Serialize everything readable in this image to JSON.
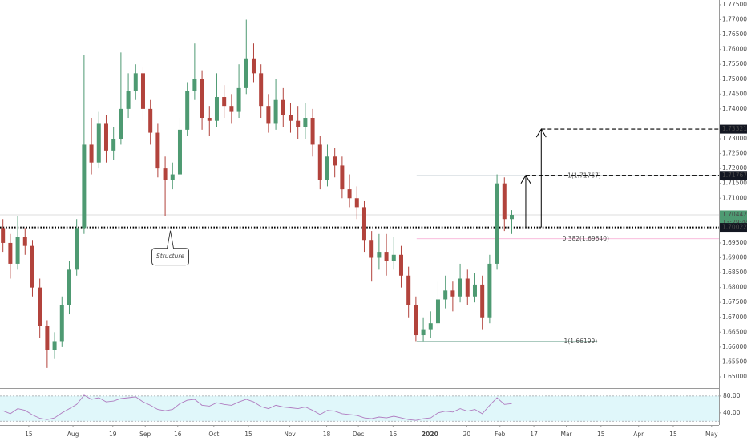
{
  "chart_data": {
    "type": "candlestick",
    "up_color": "#4e9a72",
    "down_color": "#b2433c",
    "xlim": [
      -0.4,
      97.1
    ],
    "ylim": [
      1.6465,
      1.7766
    ],
    "xticks": [
      {
        "value": 3.5,
        "label": "15"
      },
      {
        "value": 9.5,
        "label": "Aug"
      },
      {
        "value": 14.9,
        "label": "19"
      },
      {
        "value": 19.3,
        "label": "Sep"
      },
      {
        "value": 23.7,
        "label": "16"
      },
      {
        "value": 28.6,
        "label": "Oct"
      },
      {
        "value": 33.3,
        "label": "15"
      },
      {
        "value": 38.9,
        "label": "Nov"
      },
      {
        "value": 43.9,
        "label": "18"
      },
      {
        "value": 48.2,
        "label": "Dec"
      },
      {
        "value": 52.9,
        "label": "16"
      },
      {
        "value": 57.9,
        "label": "2020"
      },
      {
        "value": 62.9,
        "label": "20"
      },
      {
        "value": 67.4,
        "label": "Feb"
      },
      {
        "value": 72,
        "label": "17"
      },
      {
        "value": 76.4,
        "label": "Mar"
      },
      {
        "value": 81.1,
        "label": "15"
      },
      {
        "value": 86.2,
        "label": "Apr"
      },
      {
        "value": 90.9,
        "label": "15"
      },
      {
        "value": 96.1,
        "label": "May"
      }
    ],
    "yticks": [
      {
        "value": 1.65,
        "label": "1.65000"
      },
      {
        "value": 1.655,
        "label": "1.65500"
      },
      {
        "value": 1.66,
        "label": "1.66000"
      },
      {
        "value": 1.665,
        "label": "1.66500"
      },
      {
        "value": 1.67,
        "label": "1.67000"
      },
      {
        "value": 1.675,
        "label": "1.67500"
      },
      {
        "value": 1.68,
        "label": "1.68000"
      },
      {
        "value": 1.685,
        "label": "1.68500"
      },
      {
        "value": 1.69,
        "label": "1.69000"
      },
      {
        "value": 1.695,
        "label": "1.69500"
      },
      {
        "value": 1.71,
        "label": "1.71000"
      },
      {
        "value": 1.715,
        "label": "1.71500"
      },
      {
        "value": 1.72,
        "label": "1.72000"
      },
      {
        "value": 1.725,
        "label": "1.72500"
      },
      {
        "value": 1.73,
        "label": "1.73000"
      },
      {
        "value": 1.74,
        "label": "1.74000"
      },
      {
        "value": 1.745,
        "label": "1.74500"
      },
      {
        "value": 1.75,
        "label": "1.75000"
      },
      {
        "value": 1.755,
        "label": "1.75500"
      },
      {
        "value": 1.76,
        "label": "1.76000"
      },
      {
        "value": 1.765,
        "label": "1.76500"
      },
      {
        "value": 1.77,
        "label": "1.77000"
      },
      {
        "value": 1.775,
        "label": "1.77500"
      }
    ],
    "candles": [
      [
        1.7,
        1.703,
        1.692,
        1.695
      ],
      [
        1.695,
        1.698,
        1.683,
        1.688
      ],
      [
        1.688,
        1.704,
        1.686,
        1.697
      ],
      [
        1.697,
        1.7,
        1.691,
        1.694
      ],
      [
        1.694,
        1.696,
        1.677,
        1.68
      ],
      [
        1.68,
        1.683,
        1.663,
        1.667
      ],
      [
        1.667,
        1.669,
        1.653,
        1.659
      ],
      [
        1.659,
        1.665,
        1.656,
        1.662
      ],
      [
        1.662,
        1.677,
        1.66,
        1.674
      ],
      [
        1.674,
        1.689,
        1.671,
        1.686
      ],
      [
        1.686,
        1.703,
        1.684,
        1.7
      ],
      [
        1.7,
        1.758,
        1.698,
        1.728
      ],
      [
        1.728,
        1.737,
        1.718,
        1.722
      ],
      [
        1.722,
        1.739,
        1.72,
        1.735
      ],
      [
        1.735,
        1.738,
        1.722,
        1.726
      ],
      [
        1.726,
        1.734,
        1.723,
        1.73
      ],
      [
        1.73,
        1.759,
        1.728,
        1.74
      ],
      [
        1.74,
        1.752,
        1.737,
        1.746
      ],
      [
        1.746,
        1.755,
        1.743,
        1.752
      ],
      [
        1.752,
        1.754,
        1.736,
        1.74
      ],
      [
        1.74,
        1.743,
        1.728,
        1.732
      ],
      [
        1.732,
        1.735,
        1.717,
        1.72
      ],
      [
        1.72,
        1.724,
        1.704,
        1.716
      ],
      [
        1.716,
        1.722,
        1.713,
        1.718
      ],
      [
        1.718,
        1.737,
        1.716,
        1.733
      ],
      [
        1.733,
        1.749,
        1.731,
        1.746
      ],
      [
        1.746,
        1.762,
        1.743,
        1.75
      ],
      [
        1.75,
        1.753,
        1.733,
        1.737
      ],
      [
        1.737,
        1.741,
        1.731,
        1.736
      ],
      [
        1.736,
        1.752,
        1.734,
        1.744
      ],
      [
        1.744,
        1.748,
        1.737,
        1.741
      ],
      [
        1.741,
        1.745,
        1.735,
        1.739
      ],
      [
        1.739,
        1.755,
        1.737,
        1.747
      ],
      [
        1.747,
        1.77,
        1.745,
        1.757
      ],
      [
        1.757,
        1.762,
        1.749,
        1.752
      ],
      [
        1.752,
        1.755,
        1.737,
        1.741
      ],
      [
        1.741,
        1.745,
        1.732,
        1.735
      ],
      [
        1.735,
        1.75,
        1.733,
        1.743
      ],
      [
        1.743,
        1.747,
        1.734,
        1.738
      ],
      [
        1.738,
        1.742,
        1.732,
        1.736
      ],
      [
        1.736,
        1.741,
        1.73,
        1.734
      ],
      [
        1.734,
        1.742,
        1.73,
        1.737
      ],
      [
        1.737,
        1.74,
        1.724,
        1.728
      ],
      [
        1.728,
        1.731,
        1.713,
        1.716
      ],
      [
        1.716,
        1.728,
        1.714,
        1.724
      ],
      [
        1.724,
        1.727,
        1.717,
        1.721
      ],
      [
        1.721,
        1.724,
        1.71,
        1.713
      ],
      [
        1.713,
        1.718,
        1.707,
        1.71
      ],
      [
        1.71,
        1.714,
        1.703,
        1.707
      ],
      [
        1.707,
        1.709,
        1.692,
        1.696
      ],
      [
        1.696,
        1.699,
        1.682,
        1.69
      ],
      [
        1.69,
        1.698,
        1.686,
        1.692
      ],
      [
        1.692,
        1.698,
        1.684,
        1.689
      ],
      [
        1.689,
        1.697,
        1.686,
        1.691
      ],
      [
        1.691,
        1.694,
        1.68,
        1.684
      ],
      [
        1.684,
        1.687,
        1.67,
        1.674
      ],
      [
        1.674,
        1.677,
        1.662,
        1.664
      ],
      [
        1.664,
        1.67,
        1.662,
        1.666
      ],
      [
        1.666,
        1.672,
        1.663,
        1.668
      ],
      [
        1.668,
        1.682,
        1.666,
        1.676
      ],
      [
        1.676,
        1.684,
        1.673,
        1.679
      ],
      [
        1.679,
        1.682,
        1.672,
        1.677
      ],
      [
        1.677,
        1.688,
        1.675,
        1.683
      ],
      [
        1.683,
        1.686,
        1.674,
        1.677
      ],
      [
        1.677,
        1.685,
        1.675,
        1.681
      ],
      [
        1.681,
        1.684,
        1.666,
        1.67
      ],
      [
        1.67,
        1.691,
        1.668,
        1.688
      ],
      [
        1.688,
        1.718,
        1.686,
        1.715
      ],
      [
        1.715,
        1.717,
        1.699,
        1.703
      ],
      [
        1.703,
        1.706,
        1.698,
        1.7044
      ]
    ],
    "levels": [
      {
        "value": 1.70442,
        "style": "solid",
        "color": "#d0d0d0",
        "x_from": -0.4,
        "x_to": 97.1
      },
      {
        "value": 1.71767,
        "style": "solid",
        "color": "#cfd8dc",
        "x_from": 56.1,
        "x_to": 97.1,
        "label": "1(1.71767)",
        "label_color": "#9fd4cc",
        "label_x": 81.1
      },
      {
        "value": 1.6964,
        "style": "solid",
        "color": "#f8a5d0",
        "x_from": 56.1,
        "x_to": 97.1,
        "label": "0.382(1.69640)",
        "label_color": "#f06ab8",
        "label_x": 82.2
      },
      {
        "value": 1.66199,
        "style": "solid",
        "color": "#8fb8aa",
        "x_from": 56.1,
        "x_to": 80.6,
        "label": "1(1.66199)",
        "label_color": "#4a7c6f",
        "label_x": 80.6
      },
      {
        "value": 1.70022,
        "style": "dotted",
        "color": "#000000",
        "x_from": -0.4,
        "x_to": 97.1
      },
      {
        "value": 1.71767,
        "style": "dashed",
        "color": "#000000",
        "x_from": 70.9,
        "x_to": 97.1
      },
      {
        "value": 1.73321,
        "style": "dashed",
        "color": "#000000",
        "x_from": 73,
        "x_to": 97.1
      }
    ],
    "arrows": [
      {
        "x": 70.9,
        "from": 1.70022,
        "to": 1.71767
      },
      {
        "x": 73,
        "from": 1.70022,
        "to": 1.73321
      }
    ],
    "annotations": [
      {
        "text": "Structure",
        "x": 22.7,
        "y": 1.6905
      }
    ],
    "price_labels": [
      {
        "value": 1.73321,
        "label": "1.73321",
        "color": "#131722"
      },
      {
        "value": 1.71767,
        "label": "1.71767",
        "color": "#131722"
      },
      {
        "value": 1.70442,
        "label": "1.70442",
        "color": "#4e9a72"
      },
      {
        "value": 1.70022,
        "label": "1.70022",
        "color": "#131722"
      }
    ],
    "countdown": "13:29:44",
    "rsi": {
      "color": "#b07cc0",
      "band_color": "#e0f7fa",
      "ylim": [
        11,
        95
      ],
      "bands": [
        20,
        80
      ],
      "yticks": [
        {
          "value": 80,
          "label": "80.00"
        },
        {
          "value": 40,
          "label": "40.00"
        }
      ],
      "values": [
        45,
        38,
        50,
        46,
        35,
        27,
        24,
        28,
        40,
        50,
        60,
        82,
        72,
        76,
        66,
        68,
        74,
        76,
        78,
        66,
        58,
        48,
        45,
        48,
        62,
        70,
        72,
        58,
        56,
        64,
        60,
        58,
        66,
        72,
        66,
        55,
        50,
        58,
        54,
        52,
        50,
        54,
        46,
        36,
        46,
        44,
        38,
        36,
        34,
        28,
        26,
        30,
        28,
        32,
        28,
        24,
        22,
        26,
        28,
        40,
        44,
        42,
        50,
        44,
        48,
        38,
        58,
        76,
        60,
        62
      ]
    }
  }
}
